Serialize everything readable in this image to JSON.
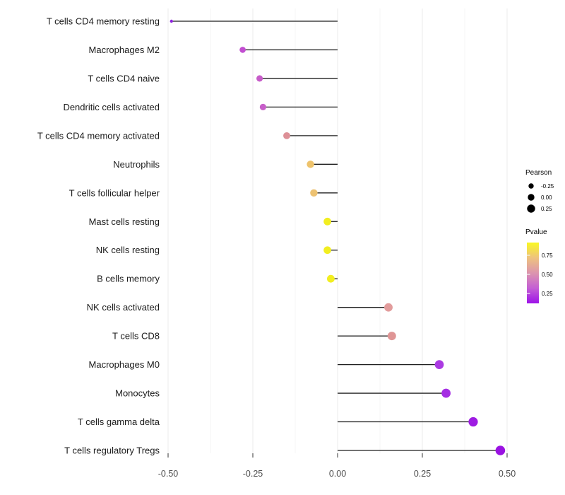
{
  "chart_data": {
    "type": "scatter",
    "variant": "horizontal-lollipop",
    "title": "",
    "xlabel": "",
    "ylabel": "",
    "x_ticks": [
      "-0.50",
      "-0.25",
      "0.00",
      "0.25",
      "0.50"
    ],
    "x_tick_values": [
      -0.5,
      -0.25,
      0,
      0.25,
      0.5
    ],
    "x_minor_values": [
      -0.375,
      -0.125,
      0.125,
      0.375
    ],
    "xlim": [
      -0.517,
      0.548
    ],
    "grid": "vertical-only",
    "legend_position": "right",
    "categories": [
      "T cells CD4 memory resting",
      "Macrophages M2",
      "T cells CD4 naive",
      "Dendritic cells activated",
      "T cells CD4 memory activated",
      "Neutrophils",
      "T cells follicular helper",
      "Mast cells resting",
      "NK cells resting",
      "B cells memory",
      "NK cells activated",
      "T cells CD8",
      "Macrophages M0",
      "Monocytes",
      "T cells gamma delta",
      "T cells regulatory  Tregs"
    ],
    "series": [
      {
        "name": "Pearson correlation",
        "values": [
          -0.49,
          -0.28,
          -0.23,
          -0.22,
          -0.15,
          -0.08,
          -0.07,
          -0.03,
          -0.03,
          -0.02,
          0.15,
          0.16,
          0.3,
          0.32,
          0.4,
          0.48
        ]
      }
    ],
    "point_colors": [
      "#8d23dd",
      "#c24ed1",
      "#c75cc9",
      "#c75fc9",
      "#dd9097",
      "#eec36c",
      "#edc272",
      "#f2ee20",
      "#f2ee20",
      "#f2ee20",
      "#e29c9c",
      "#df9595",
      "#ab3ae2",
      "#a52ee3",
      "#9e1ce2",
      "#9a12e2"
    ],
    "legends": {
      "pearson": {
        "title": "Pearson",
        "labels": [
          "-0.25",
          "0.00",
          "0.25"
        ]
      },
      "pvalue": {
        "title": "Pvalue",
        "labels": [
          "0.75",
          "0.50",
          "0.25"
        ],
        "gradient_top_to_bottom": [
          "#f9f822",
          "#eec27e",
          "#dc95ae",
          "#c45fd4",
          "#9d13e8"
        ]
      }
    },
    "colors": {
      "stem": "#1f1f1f",
      "grid_major": "#ebebeb",
      "grid_minor": "#f5f5f5",
      "axis_text": "#4d4d4d",
      "tick_mark": "#333333",
      "category_text": "#1a1a1a",
      "legend_dot": "#000000",
      "background": "#ffffff"
    }
  }
}
